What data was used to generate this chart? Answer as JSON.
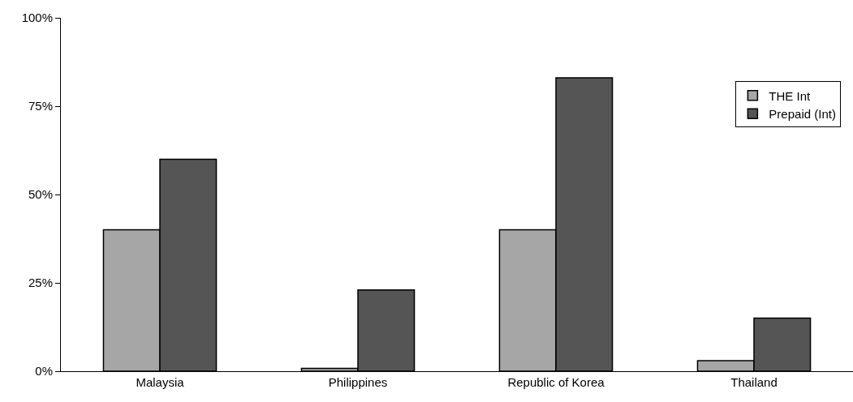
{
  "chart_data": {
    "type": "bar",
    "categories": [
      "Malaysia",
      "Philippines",
      "Republic of Korea",
      "Thailand"
    ],
    "series": [
      {
        "name": "THE Int",
        "color": "#a6a6a6",
        "values": [
          40,
          0.8,
          40,
          3
        ]
      },
      {
        "name": "Prepaid (Int)",
        "color": "#555555",
        "values": [
          60,
          23,
          83,
          15
        ]
      }
    ],
    "ylim": [
      0,
      100
    ],
    "yticks": [
      {
        "value": 0,
        "label": "0%"
      },
      {
        "value": 25,
        "label": "25%"
      },
      {
        "value": 50,
        "label": "50%"
      },
      {
        "value": 75,
        "label": "75%"
      },
      {
        "value": 100,
        "label": "100%"
      }
    ],
    "legend": "top right"
  }
}
